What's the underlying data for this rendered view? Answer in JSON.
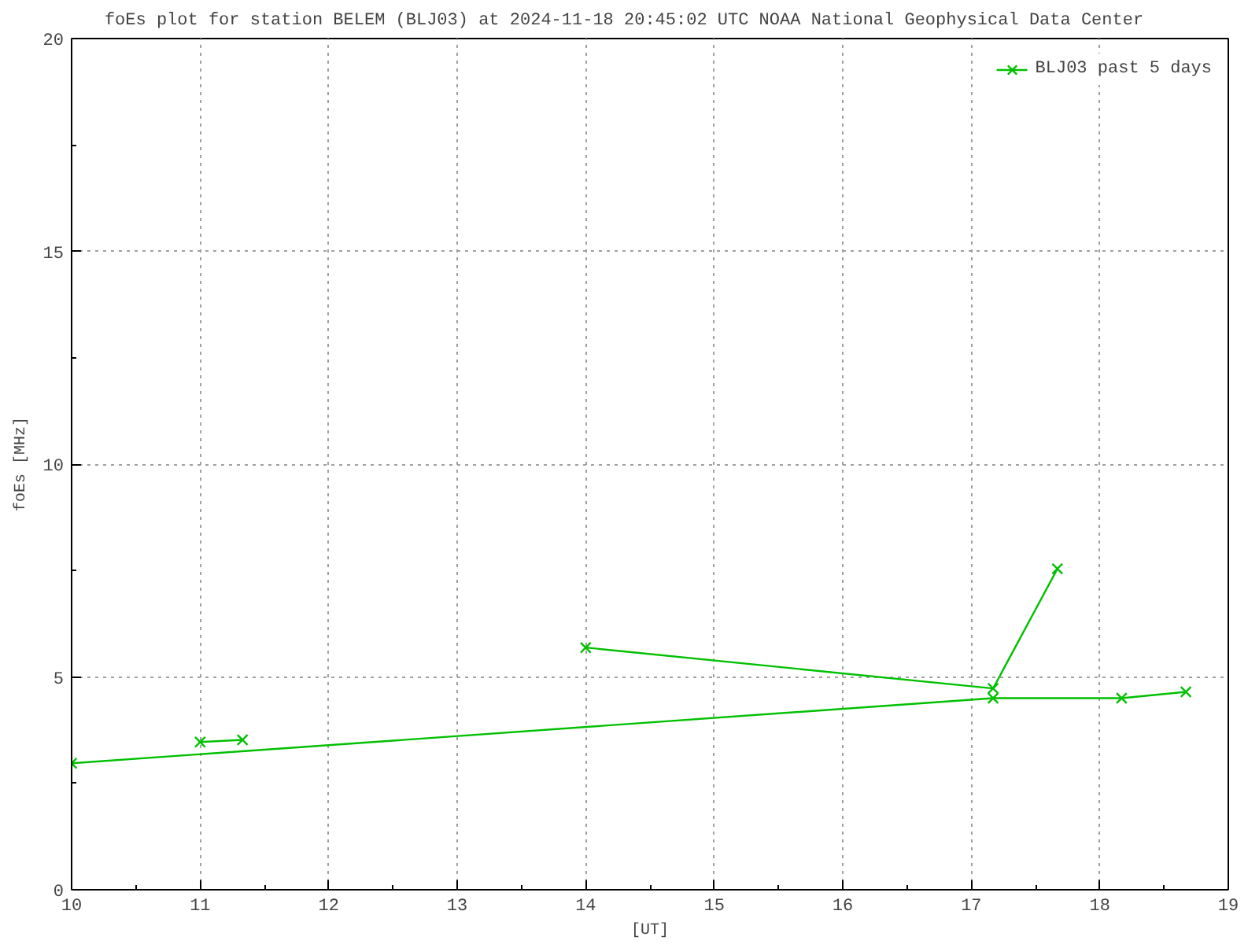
{
  "chart_data": {
    "type": "line",
    "title": "foEs plot for station BELEM (BLJ03) at 2024-11-18 20:45:02 UTC      NOAA National Geophysical Data Center",
    "xlabel": "[UT]",
    "ylabel": "foEs [MHz]",
    "series": [
      {
        "name": "BLJ03 past 5 days",
        "color": "#00c000",
        "x": [
          11.0,
          11.33,
          null,
          14.0,
          17.17,
          17.67,
          null,
          10.0,
          17.17,
          18.17,
          18.67
        ],
        "values": [
          3.47,
          3.52,
          null,
          5.69,
          4.73,
          7.54,
          null,
          2.97,
          4.5,
          4.5,
          4.65
        ]
      }
    ],
    "xlim": [
      10,
      19
    ],
    "xticks": [
      10,
      11,
      12,
      13,
      14,
      15,
      16,
      17,
      18,
      19
    ],
    "ylim": [
      0,
      20
    ],
    "yticks": [
      0,
      5,
      10,
      15,
      20
    ],
    "grid": true,
    "legend": "top right",
    "marker": "cross",
    "line_style": "solid"
  }
}
